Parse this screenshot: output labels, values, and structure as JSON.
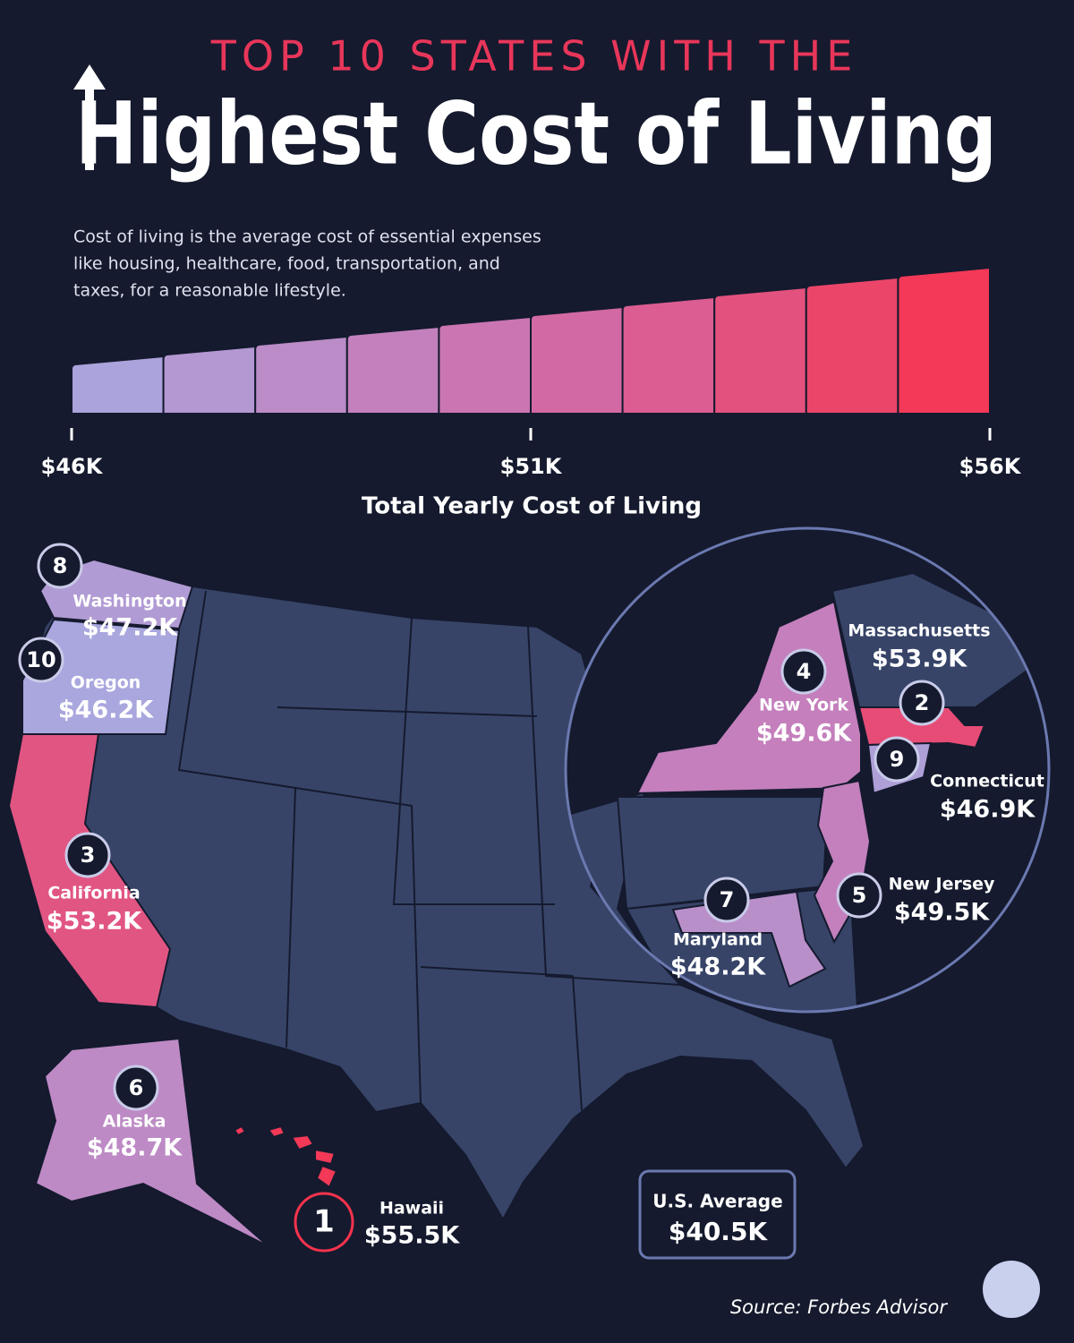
{
  "header": {
    "kicker": "TOP 10 STATES WITH THE",
    "title": "Highest Cost of Living"
  },
  "description": [
    "Cost of living is the average cost of essential expenses",
    "like housing, healthcare, food, transportation, and",
    "taxes, for a reasonable lifestyle."
  ],
  "legend": {
    "title": "Total Yearly Cost of Living",
    "range": [
      46,
      56
    ],
    "ticks": [
      {
        "value": 46,
        "label": "$46K"
      },
      {
        "value": 51,
        "label": "$51K"
      },
      {
        "value": 56,
        "label": "$56K"
      }
    ],
    "colors": [
      "#a7a9e0",
      "#cf6fae",
      "#f7334d"
    ]
  },
  "states": [
    {
      "rank": 1,
      "name": "Hawaii",
      "value": 55.5,
      "value_label": "$55.5K"
    },
    {
      "rank": 2,
      "name": "Massachusetts",
      "value": 53.9,
      "value_label": "$53.9K"
    },
    {
      "rank": 3,
      "name": "California",
      "value": 53.2,
      "value_label": "$53.2K"
    },
    {
      "rank": 4,
      "name": "New York",
      "value": 49.6,
      "value_label": "$49.6K"
    },
    {
      "rank": 5,
      "name": "New Jersey",
      "value": 49.5,
      "value_label": "$49.5K"
    },
    {
      "rank": 6,
      "name": "Alaska",
      "value": 48.7,
      "value_label": "$48.7K"
    },
    {
      "rank": 7,
      "name": "Maryland",
      "value": 48.2,
      "value_label": "$48.2K"
    },
    {
      "rank": 8,
      "name": "Washington",
      "value": 47.2,
      "value_label": "$47.2K"
    },
    {
      "rank": 9,
      "name": "Connecticut",
      "value": 46.9,
      "value_label": "$46.9K"
    },
    {
      "rank": 10,
      "name": "Oregon",
      "value": 46.2,
      "value_label": "$46.2K"
    }
  ],
  "us_average": {
    "label": "U.S. Average",
    "value_label": "$40.5K"
  },
  "source": "Source: Forbes Advisor"
}
